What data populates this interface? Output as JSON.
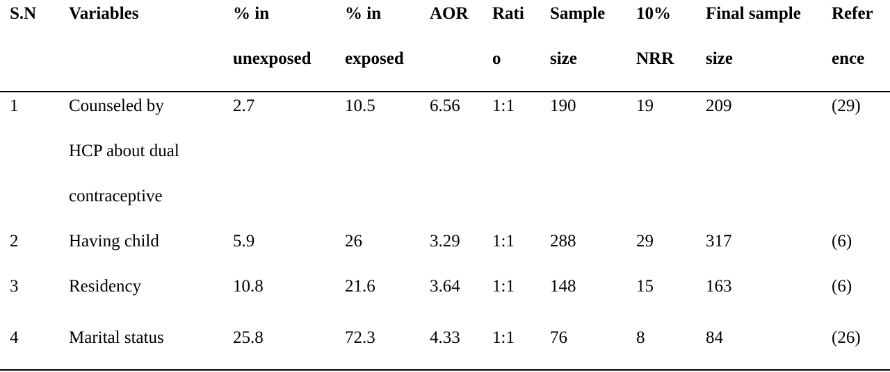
{
  "headers": [
    [
      "S.N"
    ],
    [
      "Variables"
    ],
    [
      "% in",
      "unexposed"
    ],
    [
      "% in",
      "exposed"
    ],
    [
      "AOR"
    ],
    [
      "Rati",
      "o"
    ],
    [
      "Sample",
      "size"
    ],
    [
      "10%",
      "NRR"
    ],
    [
      "Final sample",
      "size"
    ],
    [
      "Refer",
      "ence"
    ]
  ],
  "rows": [
    {
      "sn": "1",
      "variable": [
        "Counseled by",
        "HCP about dual",
        "contraceptive"
      ],
      "pct_unexposed": "2.7",
      "pct_exposed": "10.5",
      "aor": "6.56",
      "ratio": "1:1",
      "sample_size": "190",
      "nrr": "19",
      "final_sample_size": "209",
      "reference": "(29)"
    },
    {
      "sn": "2",
      "variable": [
        "Having child"
      ],
      "pct_unexposed": "5.9",
      "pct_exposed": "26",
      "aor": "3.29",
      "ratio": "1:1",
      "sample_size": "288",
      "nrr": "29",
      "final_sample_size": "317",
      "reference": "(6)"
    },
    {
      "sn": "3",
      "variable": [
        "Residency"
      ],
      "pct_unexposed": "10.8",
      "pct_exposed": "21.6",
      "aor": "3.64",
      "ratio": "1:1",
      "sample_size": "148",
      "nrr": "15",
      "final_sample_size": "163",
      "reference": "(6)"
    },
    {
      "sn": "4",
      "variable": [
        "Marital status"
      ],
      "pct_unexposed": "25.8",
      "pct_exposed": "72.3",
      "aor": "4.33",
      "ratio": "1:1",
      "sample_size": "76",
      "nrr": "8",
      "final_sample_size": "84",
      "reference": "(26)"
    }
  ]
}
